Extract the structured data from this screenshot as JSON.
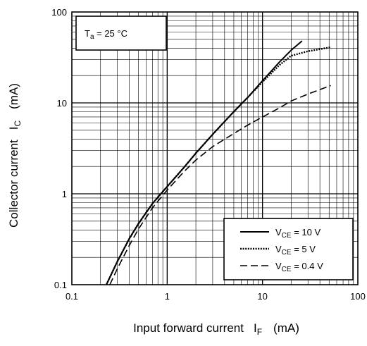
{
  "chart_data": {
    "type": "line",
    "xscale": "log",
    "yscale": "log",
    "xlim": [
      0.1,
      100
    ],
    "ylim": [
      0.1,
      100
    ],
    "grid": true,
    "xlabel": {
      "main": "Input forward current",
      "sym": "I",
      "sub": "F",
      "unit": "(mA)"
    },
    "ylabel": {
      "main": "Collector current",
      "sym": "I",
      "sub": "C",
      "unit": "(mA)"
    },
    "x_ticks": [
      {
        "value": 0.1,
        "label": "0.1"
      },
      {
        "value": 1,
        "label": "1"
      },
      {
        "value": 10,
        "label": "10"
      },
      {
        "value": 100,
        "label": "100"
      }
    ],
    "y_ticks": [
      {
        "value": 0.1,
        "label": "0.1"
      },
      {
        "value": 1,
        "label": "1"
      },
      {
        "value": 10,
        "label": "10"
      },
      {
        "value": 100,
        "label": "100"
      }
    ],
    "annotation": {
      "sym": "T",
      "sub": "a",
      "rest": " = 25 °C",
      "position": "top-left"
    },
    "legend_position": "bottom-right",
    "series": [
      {
        "name": "VCE = 10 V",
        "label": {
          "sym": "V",
          "sub": "CE",
          "rest": " = 10 V"
        },
        "dash": "solid",
        "points": [
          [
            0.23,
            0.1
          ],
          [
            0.3,
            0.18
          ],
          [
            0.4,
            0.32
          ],
          [
            0.5,
            0.47
          ],
          [
            0.7,
            0.78
          ],
          [
            1,
            1.2
          ],
          [
            1.5,
            1.95
          ],
          [
            2,
            2.8
          ],
          [
            3,
            4.5
          ],
          [
            5,
            8
          ],
          [
            7,
            11.5
          ],
          [
            10,
            17.5
          ],
          [
            15,
            28
          ],
          [
            20,
            38
          ],
          [
            26,
            48
          ]
        ]
      },
      {
        "name": "VCE = 5 V",
        "label": {
          "sym": "V",
          "sub": "CE",
          "rest": " = 5 V"
        },
        "dash": "dotted",
        "points": [
          [
            0.23,
            0.1
          ],
          [
            0.3,
            0.18
          ],
          [
            0.4,
            0.32
          ],
          [
            0.5,
            0.47
          ],
          [
            0.7,
            0.78
          ],
          [
            1,
            1.2
          ],
          [
            1.5,
            1.95
          ],
          [
            2,
            2.8
          ],
          [
            3,
            4.5
          ],
          [
            5,
            8
          ],
          [
            7,
            11.5
          ],
          [
            10,
            17
          ],
          [
            15,
            26
          ],
          [
            20,
            33
          ],
          [
            30,
            37
          ],
          [
            40,
            39
          ],
          [
            52,
            41
          ]
        ]
      },
      {
        "name": "VCE = 0.4 V",
        "label": {
          "sym": "V",
          "sub": "CE",
          "rest": " = 0.4 V"
        },
        "dash": "dashed",
        "points": [
          [
            0.25,
            0.1
          ],
          [
            0.3,
            0.15
          ],
          [
            0.4,
            0.27
          ],
          [
            0.5,
            0.41
          ],
          [
            0.7,
            0.7
          ],
          [
            1,
            1.1
          ],
          [
            1.5,
            1.75
          ],
          [
            2,
            2.35
          ],
          [
            3,
            3.3
          ],
          [
            5,
            4.6
          ],
          [
            7,
            5.7
          ],
          [
            10,
            7
          ],
          [
            15,
            8.8
          ],
          [
            20,
            10.5
          ],
          [
            30,
            12.5
          ],
          [
            40,
            14
          ],
          [
            52,
            15.5
          ]
        ]
      }
    ]
  }
}
